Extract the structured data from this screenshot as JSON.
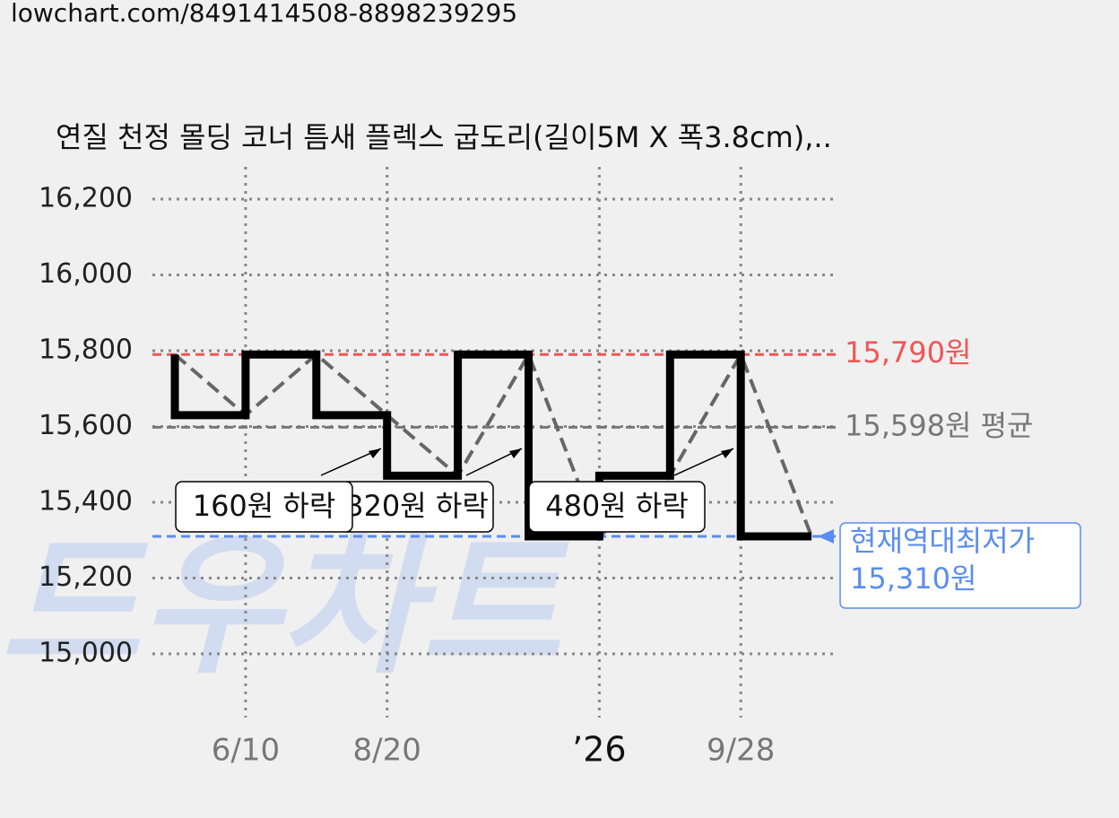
{
  "url": "lowchart.com/8491414508-8898239295",
  "chart_data": {
    "type": "step",
    "title": "연질 천정 몰딩 코너 틈새 플렉스 굽도리(길이5M X 폭3.8cm),..",
    "watermark": "드우차트",
    "categories": [
      null,
      "6/10",
      null,
      "8/20",
      null,
      null,
      "’26",
      null,
      "9/28",
      null
    ],
    "values": [
      15790,
      15630,
      15790,
      15630,
      15470,
      15790,
      15310,
      15470,
      15790,
      15310
    ],
    "color": "#000000",
    "trend_color": "#666666",
    "ylim": [
      15000,
      16200
    ],
    "yticks": [
      {
        "value": 15000,
        "label": "15,000"
      },
      {
        "value": 15200,
        "label": "15,200"
      },
      {
        "value": 15400,
        "label": "15,400"
      },
      {
        "value": 15600,
        "label": "15,600"
      },
      {
        "value": 15800,
        "label": "15,800"
      },
      {
        "value": 16000,
        "label": "16,000"
      },
      {
        "value": 16200,
        "label": "16,200"
      }
    ],
    "grid": true,
    "ref_lines": [
      {
        "value": 15790,
        "label": "15,790원",
        "color": "#f05555"
      },
      {
        "value": 15598,
        "label": "15,598원 평균",
        "color": "#777777"
      },
      {
        "value": 15310,
        "label": [
          "현재역대최저가",
          "15,310원"
        ],
        "color": "#5b8def"
      }
    ],
    "annotations": [
      "320원 하락",
      "160원 하락",
      "480원 하락"
    ]
  }
}
